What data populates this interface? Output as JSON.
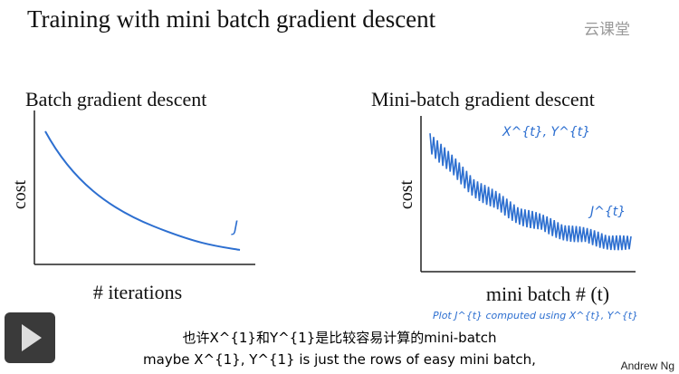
{
  "title": "Training with mini batch gradient descent",
  "watermark": "云课堂",
  "left_plot": {
    "title": "Batch gradient descent",
    "y_label": "cost",
    "x_label": "# iterations",
    "annotation": "J"
  },
  "right_plot": {
    "title": "Mini-batch gradient descent",
    "y_label": "cost",
    "x_label": "mini batch # (t)",
    "annotations": [
      "X^{t}, Y^{t}",
      "J^{t}",
      "Plot J^{t} computed using X^{t}, Y^{t}"
    ]
  },
  "subtitles": [
    "也许X^{1}和Y^{1}是比较容易计算的mini-batch",
    "maybe X^{1}, Y^{1} is just the rows of easy mini batch,"
  ],
  "credit": "Andrew Ng"
}
